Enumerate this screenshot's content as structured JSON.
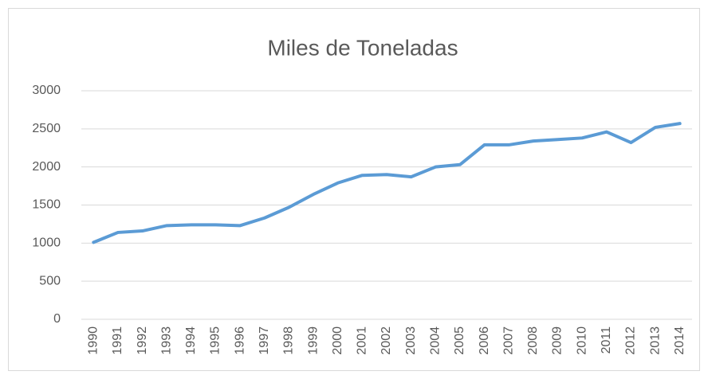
{
  "chart_data": {
    "type": "line",
    "title": "Miles de Toneladas",
    "categories": [
      "1990",
      "1991",
      "1992",
      "1993",
      "1994",
      "1995",
      "1996",
      "1997",
      "1998",
      "1999",
      "2000",
      "2001",
      "2002",
      "2003",
      "2004",
      "2005",
      "2006",
      "2007",
      "2008",
      "2009",
      "2010",
      "2011",
      "2012",
      "2013",
      "2014"
    ],
    "values": [
      1010,
      1140,
      1160,
      1230,
      1240,
      1240,
      1230,
      1330,
      1470,
      1640,
      1790,
      1890,
      1900,
      1870,
      2000,
      2030,
      2290,
      2290,
      2340,
      2360,
      2380,
      2460,
      2320,
      2520,
      2570
    ],
    "color": "#5b9bd5",
    "ylim": [
      0,
      3000
    ],
    "yticks": [
      0,
      500,
      1000,
      1500,
      2000,
      2500,
      3000
    ],
    "grid": true
  }
}
